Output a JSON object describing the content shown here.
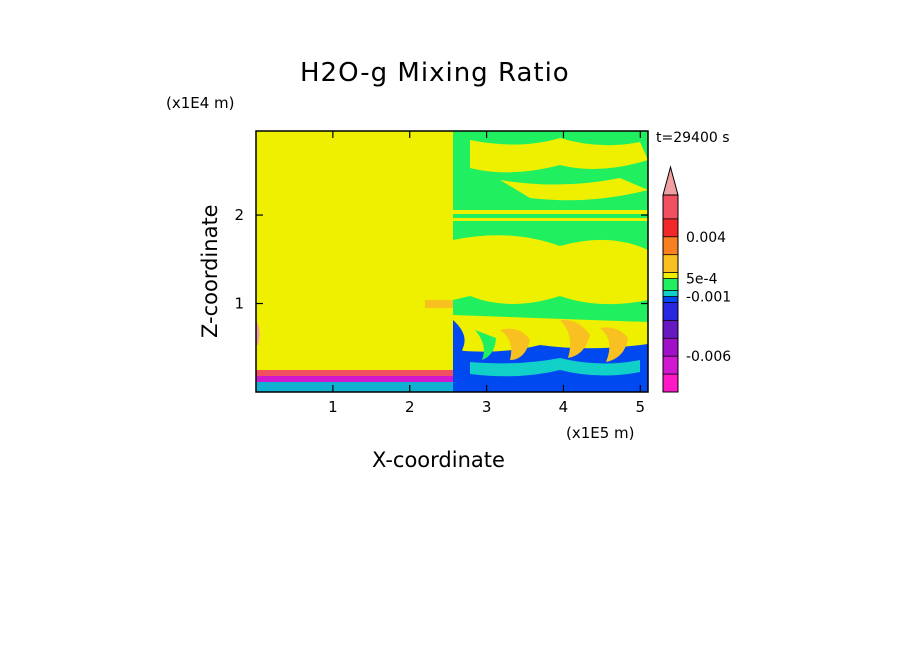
{
  "chart_data": {
    "type": "heatmap",
    "title": "H2O-g Mixing Ratio",
    "xlabel": "X-coordinate",
    "ylabel": "Z-coordinate",
    "x_unit": "(x1E5 m)",
    "y_unit": "(x1E4 m)",
    "annotation": "t=29400 s",
    "x_ticks": [
      "1",
      "2",
      "3",
      "4",
      "5"
    ],
    "x_tick_values": [
      1,
      2,
      3,
      4,
      5
    ],
    "y_ticks": [
      "1",
      "2"
    ],
    "y_tick_values": [
      1,
      2
    ],
    "xlim": [
      0,
      5.1
    ],
    "ylim": [
      0,
      2.95
    ],
    "colorbar": {
      "labels": [
        "0.004",
        "5e-4",
        "-0.001",
        "-0.006"
      ],
      "label_values": [
        0.004,
        0.0005,
        -0.001,
        -0.006
      ],
      "range": [
        -0.009,
        0.0075
      ],
      "levels": [
        {
          "value": -0.009,
          "color": "#ff18c8"
        },
        {
          "value": -0.0075,
          "color": "#d018d0"
        },
        {
          "value": -0.006,
          "color": "#a010c8"
        },
        {
          "value": -0.0045,
          "color": "#6818c0"
        },
        {
          "value": -0.003,
          "color": "#2828e0"
        },
        {
          "value": -0.0015,
          "color": "#0048f0"
        },
        {
          "value": -0.001,
          "color": "#10d0c8"
        },
        {
          "value": -0.0005,
          "color": "#20f060"
        },
        {
          "value": 0.0005,
          "color": "#eef000"
        },
        {
          "value": 0.001,
          "color": "#f8c020"
        },
        {
          "value": 0.0025,
          "color": "#f88020"
        },
        {
          "value": 0.004,
          "color": "#f02828"
        },
        {
          "value": 0.0055,
          "color": "#f05060"
        },
        {
          "value": 0.0075,
          "color": "#f0a0a0"
        }
      ]
    }
  }
}
